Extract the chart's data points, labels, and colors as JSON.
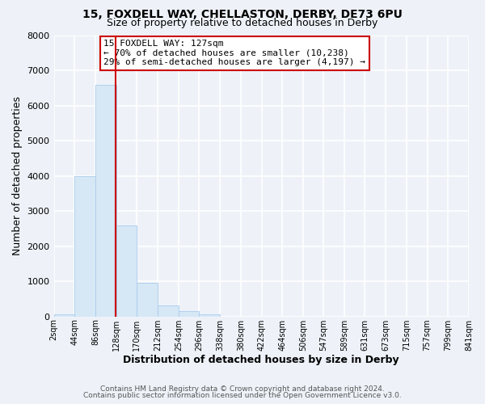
{
  "title": "15, FOXDELL WAY, CHELLASTON, DERBY, DE73 6PU",
  "subtitle": "Size of property relative to detached houses in Derby",
  "xlabel": "Distribution of detached houses by size in Derby",
  "ylabel": "Number of detached properties",
  "bin_edges": [
    2,
    44,
    86,
    128,
    170,
    212,
    254,
    296,
    338,
    380,
    422,
    464,
    506,
    547,
    589,
    631,
    673,
    715,
    757,
    799,
    841
  ],
  "bar_heights": [
    70,
    4000,
    6600,
    2600,
    960,
    320,
    145,
    70,
    0,
    0,
    0,
    0,
    0,
    0,
    0,
    0,
    0,
    0,
    0,
    0
  ],
  "bar_color": "#d6e8f5",
  "bar_edgecolor": "#aaccee",
  "property_line_x": 127,
  "property_line_color": "#cc0000",
  "ylim": [
    0,
    8000
  ],
  "annotation_line1": "15 FOXDELL WAY: 127sqm",
  "annotation_line2": "← 70% of detached houses are smaller (10,238)",
  "annotation_line3": "29% of semi-detached houses are larger (4,197) →",
  "footer_line1": "Contains HM Land Registry data © Crown copyright and database right 2024.",
  "footer_line2": "Contains public sector information licensed under the Open Government Licence v3.0.",
  "tick_labels": [
    "2sqm",
    "44sqm",
    "86sqm",
    "128sqm",
    "170sqm",
    "212sqm",
    "254sqm",
    "296sqm",
    "338sqm",
    "380sqm",
    "422sqm",
    "464sqm",
    "506sqm",
    "547sqm",
    "589sqm",
    "631sqm",
    "673sqm",
    "715sqm",
    "757sqm",
    "799sqm",
    "841sqm"
  ],
  "background_color": "#eef2f8",
  "plot_bg_color": "#eef2f8",
  "grid_color": "#ffffff",
  "annotation_box_color": "#ffffff",
  "annotation_box_edgecolor": "#cc0000"
}
